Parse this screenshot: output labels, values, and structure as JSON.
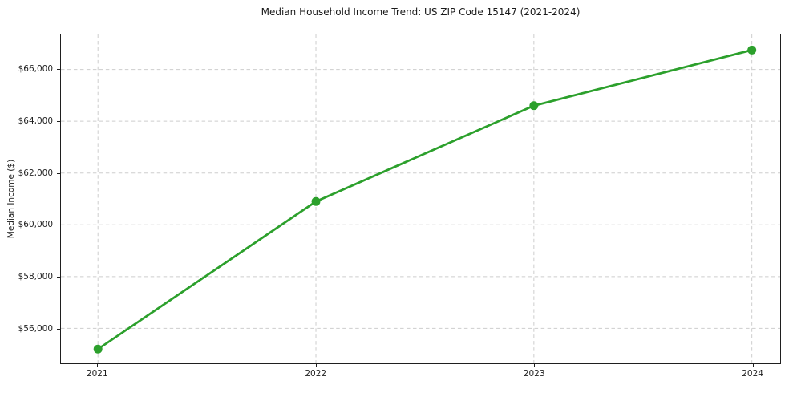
{
  "chart_data": {
    "type": "line",
    "title": "Median Household Income Trend: US ZIP Code 15147 (2021-2024)",
    "xlabel": "",
    "ylabel": "Median Income ($)",
    "x": [
      2021,
      2022,
      2023,
      2024
    ],
    "x_tick_labels": [
      "2021",
      "2022",
      "2023",
      "2024"
    ],
    "series": [
      {
        "name": "Median Household Income",
        "values": [
          55200,
          60900,
          64600,
          66750
        ]
      }
    ],
    "y_ticks": [
      56000,
      58000,
      60000,
      62000,
      64000,
      66000
    ],
    "y_tick_labels": [
      "$56,000",
      "$58,000",
      "$60,000",
      "$62,000",
      "$64,000",
      "$66,000"
    ],
    "xlim": [
      2020.83,
      2024.13
    ],
    "ylim": [
      54650,
      67350
    ],
    "grid": true,
    "legend_position": "none",
    "colors": {
      "line": "#2ca02c",
      "marker": "#2ca02c",
      "grid": "#cdcdcd",
      "spine": "#1f1f1f",
      "text": "#1a1a1a",
      "background": "#ffffff"
    }
  }
}
